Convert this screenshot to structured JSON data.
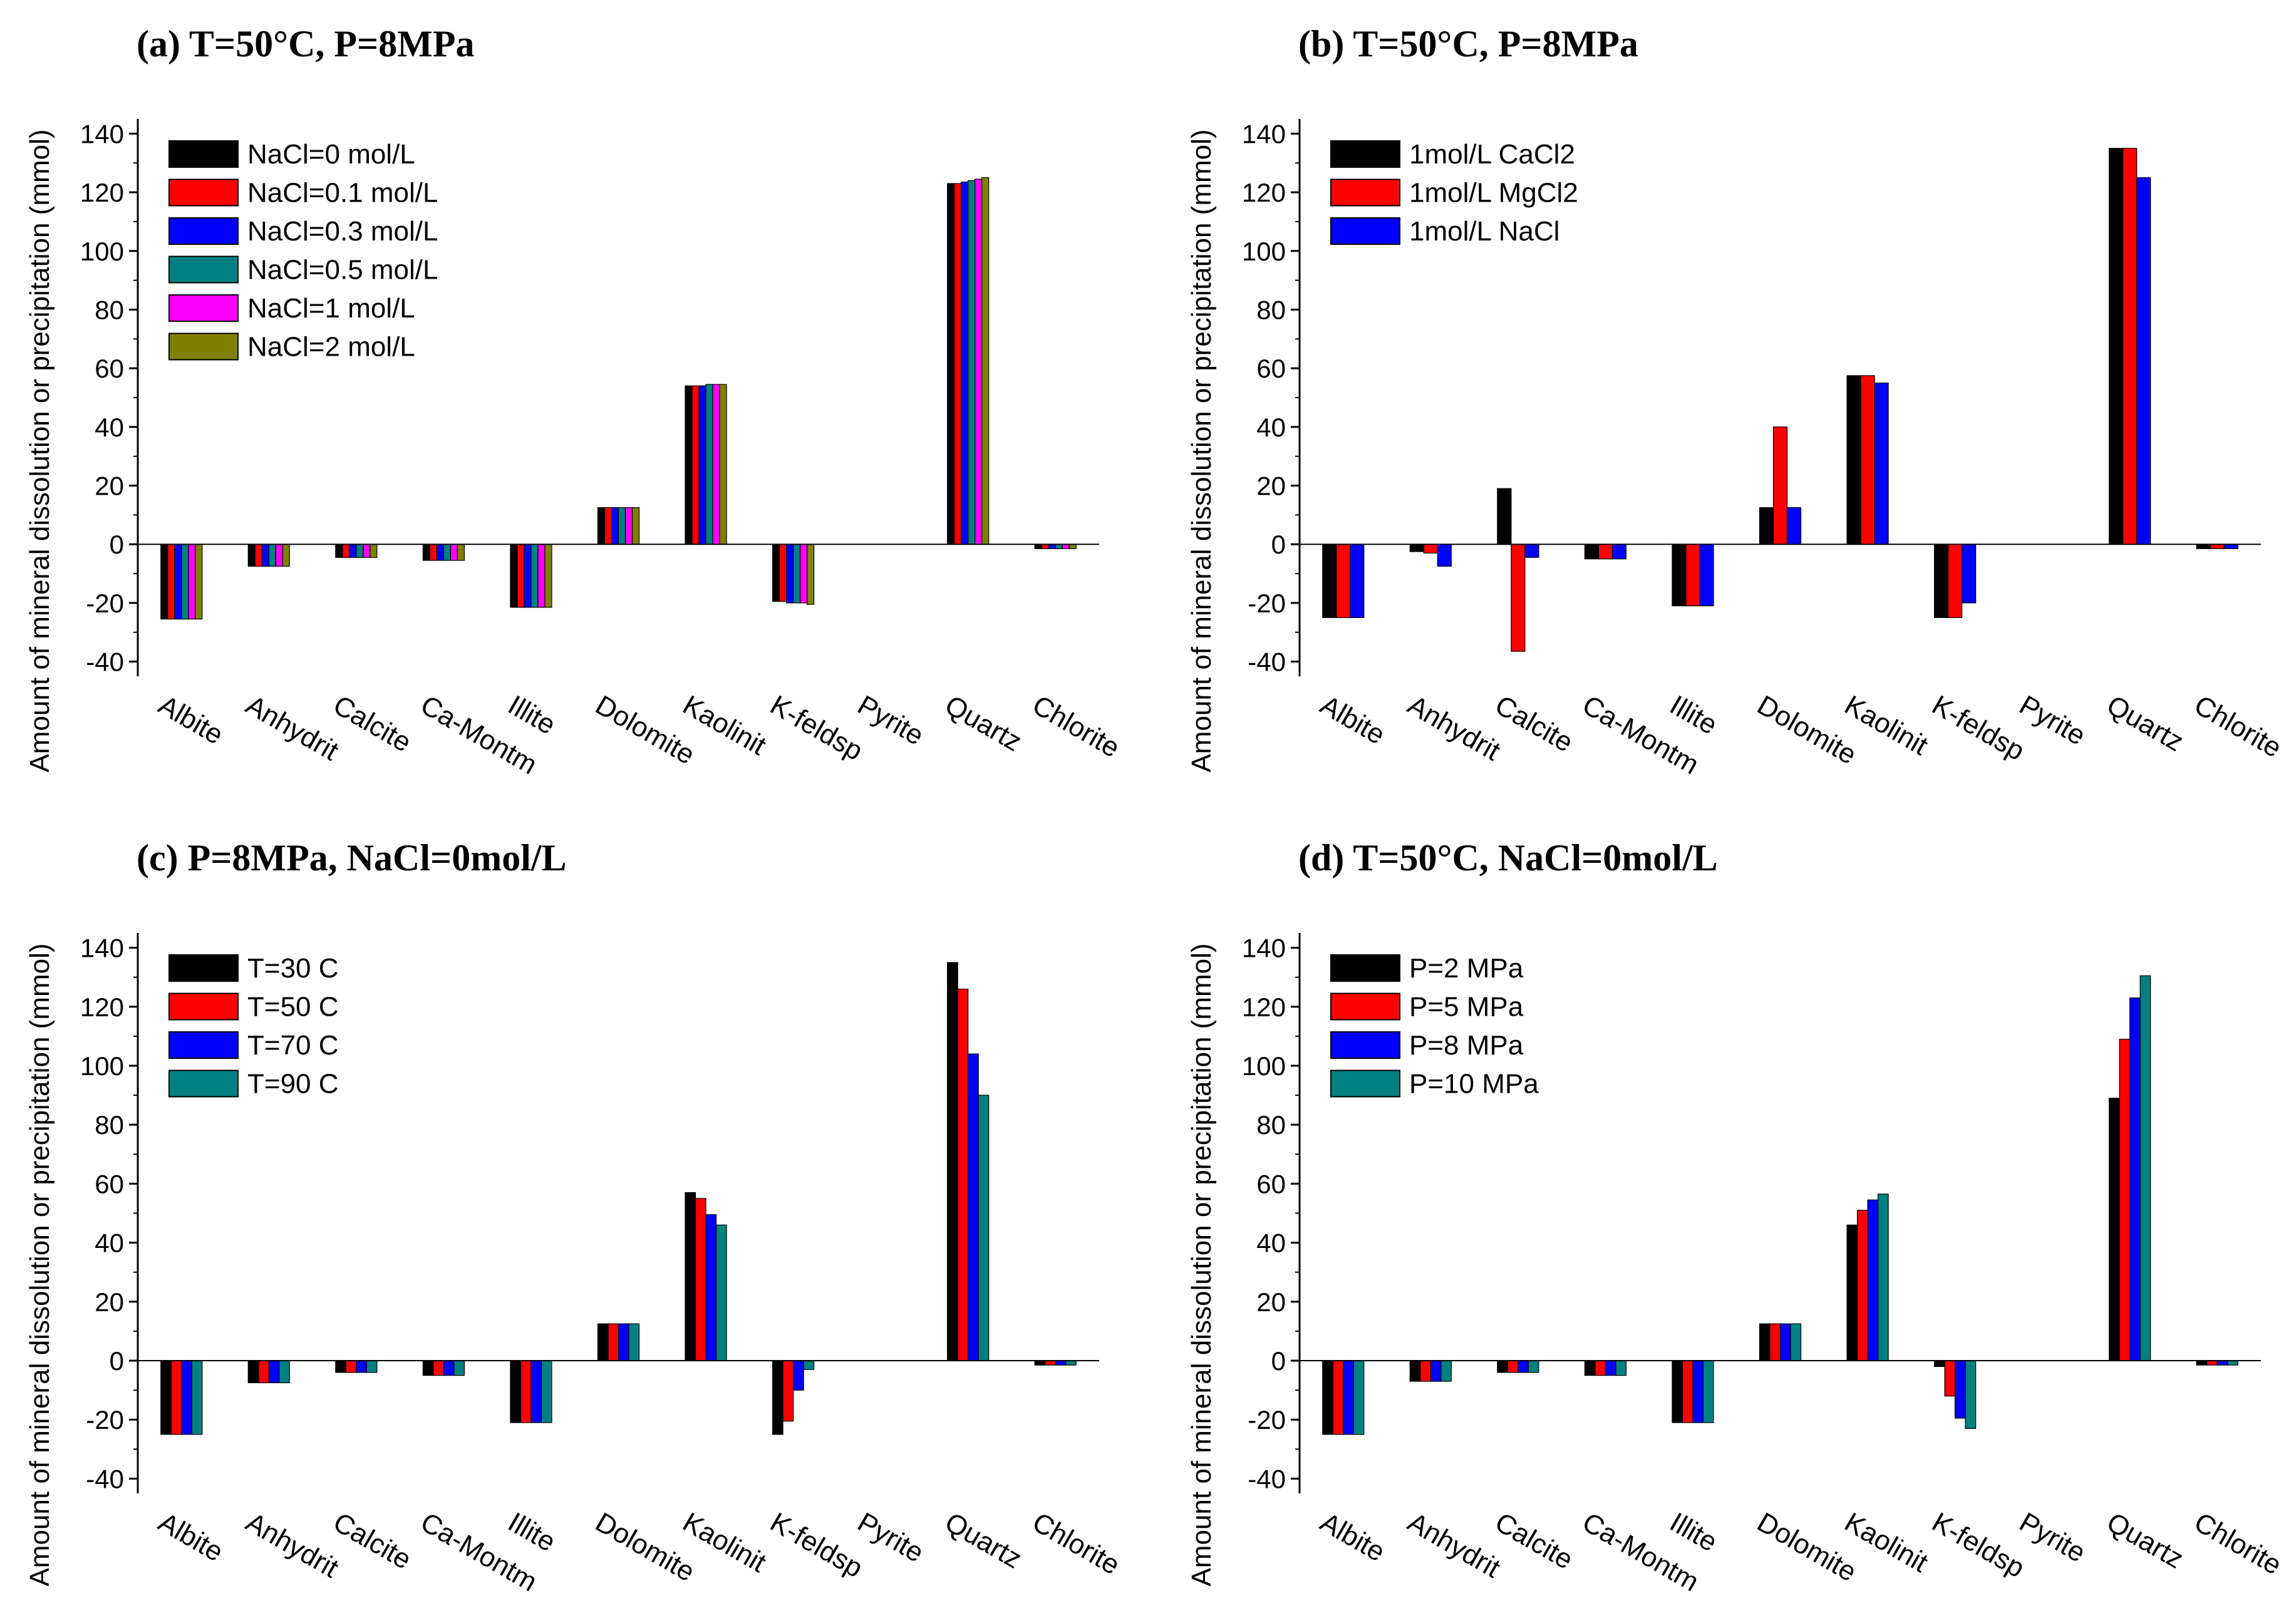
{
  "chart_data": [
    {
      "type": "bar",
      "title": "(a) T=50°C, P=8MPa",
      "xlabel": "",
      "ylabel": "Amount of mineral dissolution or precipitation (mmol)",
      "ylim": [
        -45,
        145
      ],
      "yticks": [
        -40,
        -20,
        0,
        20,
        40,
        60,
        80,
        100,
        120,
        140
      ],
      "ytick_labels": [
        "-40",
        "-20",
        "0",
        "20",
        "40",
        "60",
        "80",
        "100",
        "120",
        "140"
      ],
      "legend_position": "top-left",
      "categories": [
        "Albite",
        "Anhydrit",
        "Calcite",
        "Ca-Montm",
        "Illite",
        "Dolomite",
        "Kaolinit",
        "K-feldsp",
        "Pyrite",
        "Quartz",
        "Chlorite"
      ],
      "series": [
        {
          "name": "NaCl=0 mol/L",
          "color": "#000000",
          "values": [
            -25.5,
            -7.5,
            -4.5,
            -5.5,
            -21.5,
            12.5,
            54,
            -19.5,
            0,
            123,
            -1.5
          ]
        },
        {
          "name": "NaCl=0.1 mol/L",
          "color": "#ff0000",
          "values": [
            -25.5,
            -7.5,
            -4.5,
            -5.5,
            -21.5,
            12.5,
            54,
            -19.5,
            0,
            123,
            -1.5
          ]
        },
        {
          "name": "NaCl=0.3 mol/L",
          "color": "#0000ff",
          "values": [
            -25.5,
            -7.5,
            -4.5,
            -5.5,
            -21.5,
            12.5,
            54,
            -20,
            0,
            123.5,
            -1.5
          ]
        },
        {
          "name": "NaCl=0.5 mol/L",
          "color": "#008080",
          "values": [
            -25.5,
            -7.5,
            -4.5,
            -5.5,
            -21.5,
            12.5,
            54.5,
            -20,
            0,
            124,
            -1.5
          ]
        },
        {
          "name": "NaCl=1 mol/L",
          "color": "#ff00ff",
          "values": [
            -25.5,
            -7.5,
            -4.5,
            -5.5,
            -21.5,
            12.5,
            54.5,
            -20,
            0,
            124.5,
            -1.5
          ]
        },
        {
          "name": "NaCl=2 mol/L",
          "color": "#808000",
          "values": [
            -25.5,
            -7.5,
            -4.5,
            -5.5,
            -21.5,
            12.5,
            54.5,
            -20.5,
            0,
            125,
            -1.5
          ]
        }
      ]
    },
    {
      "type": "bar",
      "title": "(b) T=50°C, P=8MPa",
      "xlabel": "",
      "ylabel": "Amount of mineral dissolution or precipitation (mmol)",
      "ylim": [
        -45,
        145
      ],
      "yticks": [
        -40,
        -20,
        0,
        20,
        40,
        60,
        80,
        100,
        120,
        140
      ],
      "ytick_labels": [
        "-40",
        "-20",
        "0",
        "20",
        "40",
        "60",
        "80",
        "100",
        "120",
        "140"
      ],
      "legend_position": "top-left",
      "categories": [
        "Albite",
        "Anhydrit",
        "Calcite",
        "Ca-Montm",
        "Illite",
        "Dolomite",
        "Kaolinit",
        "K-feldsp",
        "Pyrite",
        "Quartz",
        "Chlorite"
      ],
      "series": [
        {
          "name": "1mol/L CaCl2",
          "color": "#000000",
          "values": [
            -25,
            -2.5,
            19,
            -5,
            -21,
            12.5,
            57.5,
            -25,
            0,
            135,
            -1.5
          ]
        },
        {
          "name": "1mol/L MgCl2",
          "color": "#ff0000",
          "values": [
            -25,
            -3,
            -36.5,
            -5,
            -21,
            40,
            57.5,
            -25,
            0,
            135,
            -1.5
          ]
        },
        {
          "name": "1mol/L NaCl",
          "color": "#0000ff",
          "values": [
            -25,
            -7.5,
            -4.5,
            -5,
            -21,
            12.5,
            55,
            -20,
            0,
            125,
            -1.5
          ]
        }
      ]
    },
    {
      "type": "bar",
      "title": "(c) P=8MPa, NaCl=0mol/L",
      "xlabel": "",
      "ylabel": "Amount of mineral dissolution or precipitation (mmol)",
      "ylim": [
        -45,
        145
      ],
      "yticks": [
        -40,
        -20,
        0,
        20,
        40,
        60,
        80,
        100,
        120,
        140
      ],
      "ytick_labels": [
        "-40",
        "-20",
        "0",
        "20",
        "40",
        "60",
        "80",
        "100",
        "120",
        "140"
      ],
      "legend_position": "top-left",
      "categories": [
        "Albite",
        "Anhydrit",
        "Calcite",
        "Ca-Montm",
        "Illite",
        "Dolomite",
        "Kaolinit",
        "K-feldsp",
        "Pyrite",
        "Quartz",
        "Chlorite"
      ],
      "series": [
        {
          "name": "T=30 C",
          "color": "#000000",
          "values": [
            -25,
            -7.5,
            -4,
            -5,
            -21,
            12.5,
            57,
            -25,
            0,
            135,
            -1.5
          ]
        },
        {
          "name": "T=50 C",
          "color": "#ff0000",
          "values": [
            -25,
            -7.5,
            -4,
            -5,
            -21,
            12.5,
            55,
            -20.5,
            0,
            126,
            -1.5
          ]
        },
        {
          "name": "T=70 C",
          "color": "#0000ff",
          "values": [
            -25,
            -7.5,
            -4,
            -5,
            -21,
            12.5,
            49.5,
            -10,
            0,
            104,
            -1.5
          ]
        },
        {
          "name": "T=90 C",
          "color": "#008080",
          "values": [
            -25,
            -7.5,
            -4,
            -5,
            -21,
            12.5,
            46,
            -3,
            0,
            90,
            -1.5
          ]
        }
      ]
    },
    {
      "type": "bar",
      "title": "(d) T=50°C, NaCl=0mol/L",
      "xlabel": "",
      "ylabel": "Amount of mineral dissolution or precipitation (mmol)",
      "ylim": [
        -45,
        145
      ],
      "yticks": [
        -40,
        -20,
        0,
        20,
        40,
        60,
        80,
        100,
        120,
        140
      ],
      "ytick_labels": [
        "-40",
        "-20",
        "0",
        "20",
        "40",
        "60",
        "80",
        "100",
        "120",
        "140"
      ],
      "legend_position": "top-left",
      "categories": [
        "Albite",
        "Anhydrit",
        "Calcite",
        "Ca-Montm",
        "Illite",
        "Dolomite",
        "Kaolinit",
        "K-feldsp",
        "Pyrite",
        "Quartz",
        "Chlorite"
      ],
      "series": [
        {
          "name": "P=2 MPa",
          "color": "#000000",
          "values": [
            -25,
            -7,
            -4,
            -5,
            -21,
            12.5,
            46,
            -2,
            0,
            89,
            -1.5
          ]
        },
        {
          "name": "P=5 MPa",
          "color": "#ff0000",
          "values": [
            -25,
            -7,
            -4,
            -5,
            -21,
            12.5,
            51,
            -12,
            0,
            109,
            -1.5
          ]
        },
        {
          "name": "P=8 MPa",
          "color": "#0000ff",
          "values": [
            -25,
            -7,
            -4,
            -5,
            -21,
            12.5,
            54.5,
            -19.5,
            0,
            123,
            -1.5
          ]
        },
        {
          "name": "P=10 MPa",
          "color": "#008080",
          "values": [
            -25,
            -7,
            -4,
            -5,
            -21,
            12.5,
            56.5,
            -23,
            0,
            130.5,
            -1.5
          ]
        }
      ]
    }
  ]
}
